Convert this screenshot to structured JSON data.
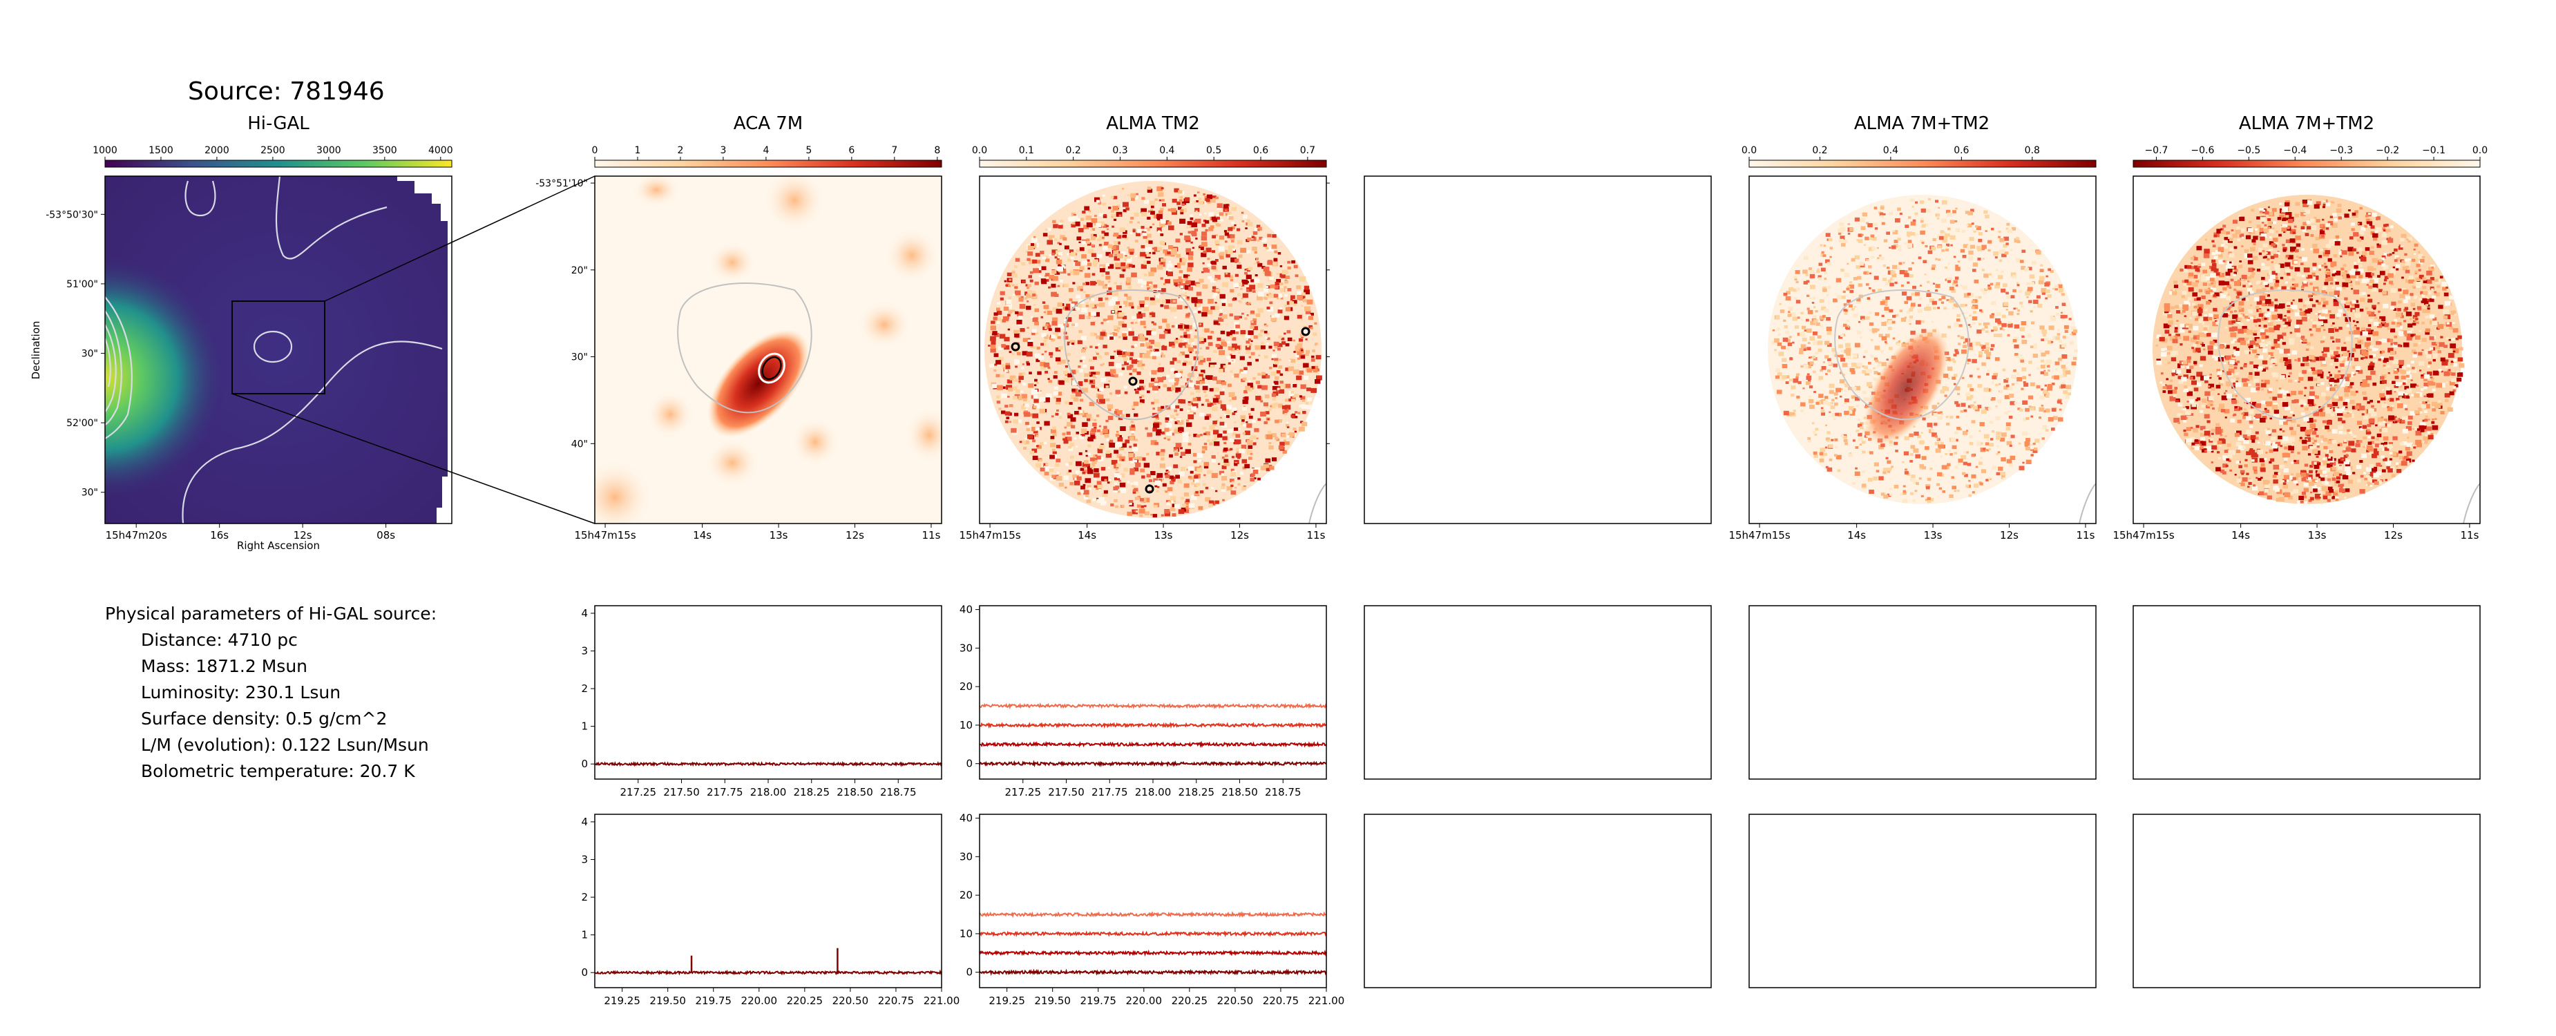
{
  "figure": {
    "title": "Source: 781946",
    "params_heading": "Physical parameters of Hi-GAL source:",
    "params": [
      "Distance: 4710 pc",
      "Mass: 1871.2 Msun",
      "Luminosity: 230.1 Lsun",
      "Surface density: 0.5 g/cm^2",
      "L/M (evolution): 0.122 Lsun/Msun",
      "Bolometric temperature: 20.7 K"
    ]
  },
  "colors": {
    "viridis_low": "#3b2a78",
    "viridis_high": "#fde725",
    "orrd_low": "#fff7ec",
    "orrd_high": "#7f0000",
    "spectrum_series": [
      "#7f0000",
      "#b30000",
      "#e0341f",
      "#f06a4c"
    ]
  },
  "chart_data": [
    {
      "type": "heatmap",
      "panel": "higal",
      "title": "Hi-GAL",
      "xlabel": "Right Ascension",
      "ylabel": "Declination",
      "x_ticks": [
        "15h47m20s",
        "16s",
        "12s",
        "08s"
      ],
      "y_ticks": [
        "-53°50'30\"",
        "51'00\"",
        "30\"",
        "52'00\"",
        "30\""
      ],
      "colorbar": {
        "ticks": [
          1000,
          1500,
          2000,
          2500,
          3000,
          3500,
          4000
        ],
        "range": [
          1000,
          4100
        ],
        "cmap": "viridis"
      }
    },
    {
      "type": "heatmap",
      "panel": "aca7m",
      "title": "ACA 7M",
      "x_ticks": [
        "15h47m15s",
        "14s",
        "13s",
        "12s",
        "11s"
      ],
      "y_ticks": [
        "-53°51'10\"",
        "20\"",
        "30\"",
        "40\""
      ],
      "colorbar": {
        "ticks": [
          0,
          1,
          2,
          3,
          4,
          5,
          6,
          7,
          8
        ],
        "range": [
          0,
          8.1
        ],
        "cmap": "OrRd"
      }
    },
    {
      "type": "heatmap",
      "panel": "tm2",
      "title": "ALMA TM2",
      "x_ticks": [
        "15h47m15s",
        "14s",
        "13s",
        "12s",
        "11s"
      ],
      "colorbar": {
        "ticks": [
          "0.0",
          "0.1",
          "0.2",
          "0.3",
          "0.4",
          "0.5",
          "0.6",
          "0.7"
        ],
        "range": [
          0,
          0.74
        ],
        "cmap": "OrRd"
      }
    },
    {
      "type": "heatmap",
      "panel": "combined",
      "title": "ALMA 7M+TM2",
      "x_ticks": [
        "15h47m15s",
        "14s",
        "13s",
        "12s",
        "11s"
      ],
      "colorbar": {
        "ticks": [
          "0.0",
          "0.2",
          "0.4",
          "0.6",
          "0.8"
        ],
        "range": [
          0,
          0.98
        ],
        "cmap": "OrRd"
      }
    },
    {
      "type": "heatmap",
      "panel": "combined_neg",
      "title": "ALMA 7M+TM2",
      "x_ticks": [
        "15h47m15s",
        "14s",
        "13s",
        "12s",
        "11s"
      ],
      "colorbar": {
        "ticks": [
          "−0.7",
          "−0.6",
          "−0.5",
          "−0.4",
          "−0.3",
          "−0.2",
          "−0.1",
          "0.0"
        ],
        "range": [
          -0.75,
          0
        ],
        "cmap": "OrRd_r"
      }
    },
    {
      "type": "line",
      "panel": "spec_aca_1",
      "xlim": [
        217.0,
        219.0
      ],
      "ylim": [
        -0.4,
        4.2
      ],
      "x_ticks": [
        217.25,
        217.5,
        217.75,
        218.0,
        218.25,
        218.5,
        218.75
      ],
      "x_tick_labels": [
        "217.25",
        "217.50",
        "217.75",
        "218.00",
        "218.25",
        "218.50",
        "218.75"
      ],
      "y_ticks": [
        0,
        1,
        2,
        3,
        4
      ],
      "series": [
        {
          "values": [
            0
          ],
          "noise": 0.03
        }
      ]
    },
    {
      "type": "line",
      "panel": "spec_tm2_1",
      "xlim": [
        217.0,
        219.0
      ],
      "ylim": [
        -4,
        41
      ],
      "x_ticks": [
        217.25,
        217.5,
        217.75,
        218.0,
        218.25,
        218.5,
        218.75
      ],
      "x_tick_labels": [
        "217.25",
        "217.50",
        "217.75",
        "218.00",
        "218.25",
        "218.50",
        "218.75"
      ],
      "y_ticks": [
        0,
        10,
        20,
        30,
        40
      ],
      "series": [
        {
          "values": [
            0
          ],
          "noise": 0.35
        },
        {
          "values": [
            5
          ],
          "noise": 0.35
        },
        {
          "values": [
            10
          ],
          "noise": 0.35
        },
        {
          "values": [
            15
          ],
          "noise": 0.35
        }
      ]
    },
    {
      "type": "line",
      "panel": "spec_aca_2",
      "xlim": [
        219.1,
        221.0
      ],
      "ylim": [
        -0.4,
        4.2
      ],
      "x_ticks": [
        219.25,
        219.5,
        219.75,
        220.0,
        220.25,
        220.5,
        220.75,
        221.0
      ],
      "x_tick_labels": [
        "219.25",
        "219.50",
        "219.75",
        "220.00",
        "220.25",
        "220.50",
        "220.75",
        "221.00"
      ],
      "y_ticks": [
        0,
        1,
        2,
        3,
        4
      ],
      "series": [
        {
          "values": [
            0
          ],
          "noise": 0.03
        }
      ],
      "spikes": [
        {
          "x": 219.63,
          "y": 0.45
        },
        {
          "x": 220.43,
          "y": 0.65
        }
      ]
    },
    {
      "type": "line",
      "panel": "spec_tm2_2",
      "xlim": [
        219.1,
        221.0
      ],
      "ylim": [
        -4,
        41
      ],
      "x_ticks": [
        219.25,
        219.5,
        219.75,
        220.0,
        220.25,
        220.5,
        220.75,
        221.0
      ],
      "x_tick_labels": [
        "219.25",
        "219.50",
        "219.75",
        "220.00",
        "220.25",
        "220.50",
        "220.75",
        "221.00"
      ],
      "y_ticks": [
        0,
        10,
        20,
        30,
        40
      ],
      "series": [
        {
          "values": [
            0
          ],
          "noise": 0.35
        },
        {
          "values": [
            5
          ],
          "noise": 0.35
        },
        {
          "values": [
            10
          ],
          "noise": 0.35
        },
        {
          "values": [
            15
          ],
          "noise": 0.35
        }
      ]
    }
  ]
}
